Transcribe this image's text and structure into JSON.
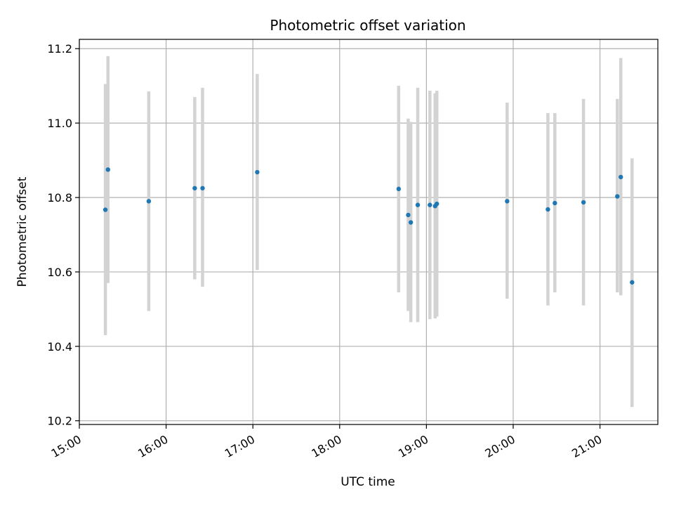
{
  "chart_data": {
    "type": "scatter",
    "title": "Photometric offset variation",
    "xlabel": "UTC time",
    "ylabel": "Photometric offset",
    "grid": true,
    "x_ticks": [
      "15:00",
      "16:00",
      "17:00",
      "18:00",
      "19:00",
      "20:00",
      "21:00"
    ],
    "y_ticks": [
      "10.2",
      "10.4",
      "10.6",
      "10.8",
      "11.0",
      "11.2"
    ],
    "xlim_hours": [
      15.0,
      21.667
    ],
    "ylim": [
      10.19,
      11.225
    ],
    "colors": {
      "point": "#1f77b4",
      "errorbar": "#d3d3d3",
      "grid": "#b0b0b0",
      "axes": "#000000"
    },
    "points": [
      {
        "t": 15.3,
        "y": 10.767,
        "lo": 10.43,
        "hi": 11.105
      },
      {
        "t": 15.33,
        "y": 10.875,
        "lo": 10.57,
        "hi": 11.18
      },
      {
        "t": 15.8,
        "y": 10.79,
        "lo": 10.495,
        "hi": 11.085
      },
      {
        "t": 16.33,
        "y": 10.825,
        "lo": 10.58,
        "hi": 11.07
      },
      {
        "t": 16.42,
        "y": 10.825,
        "lo": 10.56,
        "hi": 11.095
      },
      {
        "t": 17.05,
        "y": 10.868,
        "lo": 10.605,
        "hi": 11.132
      },
      {
        "t": 18.68,
        "y": 10.823,
        "lo": 10.545,
        "hi": 11.1
      },
      {
        "t": 18.79,
        "y": 10.753,
        "lo": 10.495,
        "hi": 11.012
      },
      {
        "t": 18.82,
        "y": 10.733,
        "lo": 10.465,
        "hi": 11.003
      },
      {
        "t": 18.9,
        "y": 10.78,
        "lo": 10.465,
        "hi": 11.095
      },
      {
        "t": 19.04,
        "y": 10.78,
        "lo": 10.473,
        "hi": 11.087
      },
      {
        "t": 19.1,
        "y": 10.777,
        "lo": 10.475,
        "hi": 11.08
      },
      {
        "t": 19.12,
        "y": 10.783,
        "lo": 10.48,
        "hi": 11.087
      },
      {
        "t": 19.93,
        "y": 10.79,
        "lo": 10.528,
        "hi": 11.055
      },
      {
        "t": 20.4,
        "y": 10.768,
        "lo": 10.51,
        "hi": 11.027
      },
      {
        "t": 20.48,
        "y": 10.785,
        "lo": 10.545,
        "hi": 11.027
      },
      {
        "t": 20.81,
        "y": 10.787,
        "lo": 10.51,
        "hi": 11.065
      },
      {
        "t": 21.2,
        "y": 10.803,
        "lo": 10.545,
        "hi": 11.065
      },
      {
        "t": 21.24,
        "y": 10.855,
        "lo": 10.537,
        "hi": 11.175
      },
      {
        "t": 21.37,
        "y": 10.572,
        "lo": 10.237,
        "hi": 10.905
      }
    ]
  }
}
